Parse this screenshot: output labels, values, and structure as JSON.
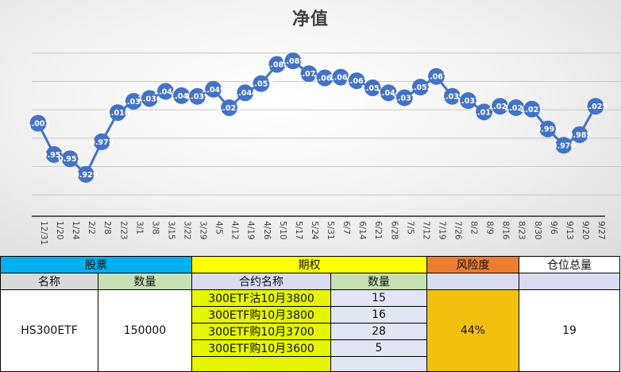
{
  "chart_data": {
    "type": "line",
    "title": "净值",
    "xlabel": "",
    "ylabel": "",
    "categories": [
      "12/31",
      "1/20",
      "1/24",
      "2/2",
      "2/8",
      "2/23",
      "3/1",
      "3/8",
      "3/15",
      "3/22",
      "3/29",
      "4/5",
      "4/12",
      "4/19",
      "4/26",
      "5/10",
      "5/17",
      "5/24",
      "5/31",
      "6/7",
      "6/14",
      "6/21",
      "6/28",
      "7/5",
      "7/12",
      "7/19",
      "7/26",
      "8/2",
      "8/9",
      "8/16",
      "8/23",
      "8/30",
      "9/6",
      "9/13",
      "9/20",
      "9/27"
    ],
    "values": [
      1.001,
      0.957,
      0.951,
      0.929,
      0.975,
      1.016,
      1.032,
      1.036,
      1.046,
      1.04,
      1.039,
      1.049,
      1.023,
      1.044,
      1.057,
      1.084,
      1.089,
      1.071,
      1.065,
      1.066,
      1.061,
      1.051,
      1.044,
      1.037,
      1.052,
      1.067,
      1.039,
      1.033,
      1.017,
      1.025,
      1.023,
      1.021,
      0.993,
      0.97,
      0.985,
      1.025
    ],
    "ylim": [
      0.87,
      1.13
    ],
    "grid": true,
    "legend": "none",
    "line_color": "#4472c4",
    "marker_color": "#4472c4",
    "label_color": "#ffffff"
  },
  "table": {
    "headers": {
      "stock": "股票",
      "option": "期权",
      "risk": "风险度",
      "position": "仓位总量"
    },
    "subheaders": {
      "stock_name": "名称",
      "stock_qty": "数量",
      "contract_name": "合约名称",
      "option_qty": "数量"
    },
    "stock": {
      "name": "HS300ETF",
      "quantity": "150000"
    },
    "options": [
      {
        "contract": "300ETF沽10月3800",
        "quantity": "15"
      },
      {
        "contract": "300ETF购10月3800",
        "quantity": "16"
      },
      {
        "contract": "300ETF购10月3700",
        "quantity": "28"
      },
      {
        "contract": "300ETF购10月3600",
        "quantity": "5"
      },
      {
        "contract": "",
        "quantity": ""
      }
    ],
    "risk_value": "44%",
    "position_total": "19",
    "colors": {
      "stock_header": "#00b0f0",
      "option_header": "#ffff00",
      "risk_header": "#ed7d31",
      "risk_cell": "#f2c00e",
      "contract_cell": "#e6f500"
    }
  }
}
